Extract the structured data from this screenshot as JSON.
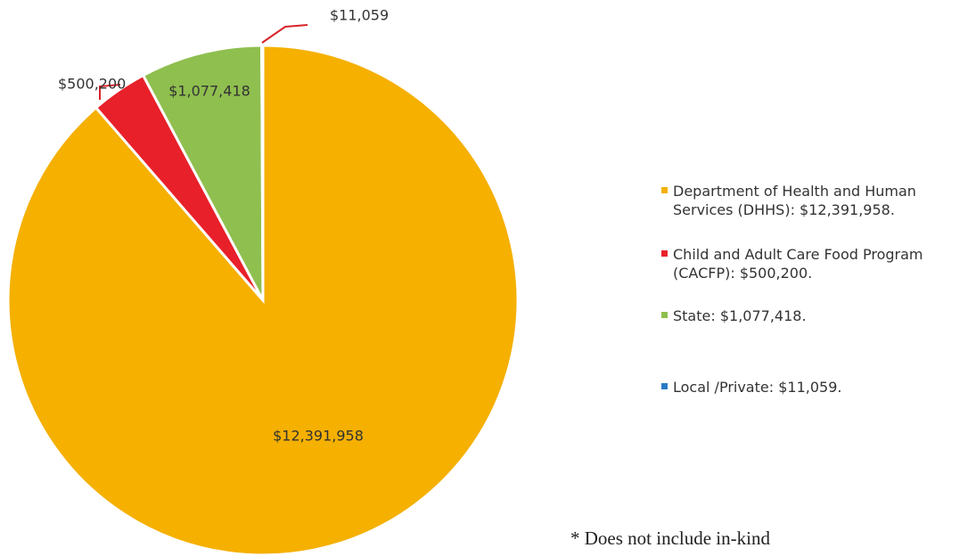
{
  "chart_data": {
    "type": "pie",
    "categories": [
      "Department of Health and Human Services (DHHS): $12,391,958.",
      "Child and Adult Care Food Program (CACFP): $500,200.",
      "State: $1,077,418.",
      "Local /Private: $11,059."
    ],
    "values": [
      12391958,
      500200,
      1077418,
      11059
    ],
    "value_labels": [
      "$12,391,958",
      "$500,200",
      "$1,077,418",
      "$11,059"
    ],
    "colors": [
      "#f5b000",
      "#e8202a",
      "#8fbf4f",
      "#2a7bc4"
    ],
    "annotation": "* Does not include in-kind"
  }
}
